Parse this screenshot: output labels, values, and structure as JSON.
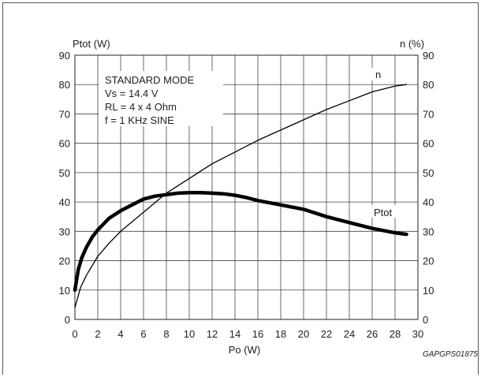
{
  "chart_data": {
    "type": "line",
    "xlabel": "Po (W)",
    "ylabel_left": "Ptot (W)",
    "ylabel_right": "n (%)",
    "xlim": [
      0,
      30
    ],
    "ylim": [
      0,
      90
    ],
    "ylim_right": [
      0,
      90
    ],
    "x_ticks": [
      "0",
      "2",
      "4",
      "6",
      "8",
      "10",
      "12",
      "14",
      "16",
      "18",
      "20",
      "22",
      "24",
      "26",
      "28",
      "30"
    ],
    "y_ticks": [
      "0",
      "10",
      "20",
      "30",
      "40",
      "50",
      "60",
      "70",
      "80",
      "90"
    ],
    "grid": true,
    "annotation_lines": [
      "STANDARD MODE",
      "Vs = 14.4 V",
      "RL = 4 x 4 Ohm",
      "f = 1 KHz SINE"
    ],
    "figure_code": "GAPGPS01875",
    "series": [
      {
        "name": "Ptot",
        "axis": "left",
        "weight": "bold",
        "x": [
          0,
          0.3,
          0.6,
          1,
          1.5,
          2,
          3,
          4,
          5,
          6,
          7,
          8,
          9,
          10,
          11,
          12,
          13,
          14,
          15,
          16,
          18,
          20,
          22,
          24,
          26,
          28,
          29
        ],
        "y": [
          10,
          17,
          21,
          24.5,
          28,
          30.5,
          34.5,
          37,
          39,
          41,
          42,
          42.5,
          43,
          43.2,
          43.2,
          43,
          42.8,
          42.3,
          41.5,
          40.5,
          39,
          37.5,
          35,
          33,
          31,
          29.5,
          29
        ]
      },
      {
        "name": "n",
        "axis": "right",
        "weight": "thin",
        "x": [
          0,
          0.5,
          1,
          2,
          3,
          4,
          6,
          8,
          10,
          12,
          14,
          16,
          18,
          20,
          22,
          24,
          26,
          28,
          29
        ],
        "y": [
          4,
          11,
          15,
          21.5,
          26,
          30,
          36.5,
          43,
          48,
          53,
          57,
          61,
          64.5,
          68,
          71.5,
          74.5,
          77.5,
          79.5,
          80
        ]
      }
    ]
  }
}
